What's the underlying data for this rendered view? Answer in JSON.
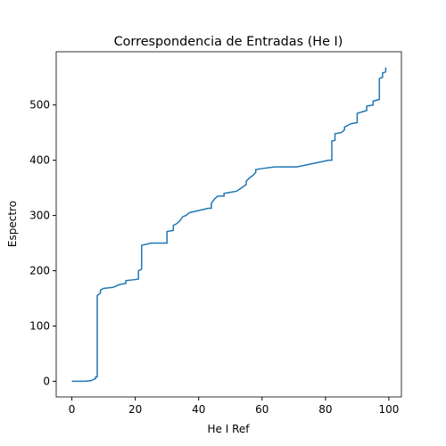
{
  "chart_data": {
    "type": "line",
    "title": "Correspondencia de Entradas (He I)",
    "xlabel": "He I Ref",
    "ylabel": "Espectro",
    "x": [
      0,
      4,
      6,
      7.5,
      7.5,
      8,
      8,
      9,
      9,
      10,
      13,
      15,
      17,
      17,
      20,
      21,
      21,
      22,
      22,
      25,
      29,
      30,
      30,
      32,
      32,
      33,
      34,
      35,
      36,
      37,
      43,
      44,
      44,
      45,
      46,
      48,
      48,
      52,
      53,
      54,
      55,
      55,
      56,
      57,
      58,
      58,
      60,
      64,
      71,
      81,
      82,
      82,
      83,
      83,
      85,
      86,
      86,
      87,
      88,
      90,
      90,
      93,
      93,
      95,
      95,
      97,
      97,
      98,
      98,
      99,
      99
    ],
    "series": [
      {
        "name": "Espectro",
        "color": "#1f77b4",
        "values": [
          0,
          0,
          1,
          5,
          8,
          8,
          155,
          160,
          165,
          168,
          170,
          175,
          177,
          182,
          184,
          185,
          200,
          203,
          246,
          250,
          250,
          250,
          271,
          273,
          282,
          285,
          290,
          298,
          300,
          305,
          313,
          313,
          322,
          330,
          335,
          335,
          340,
          344,
          348,
          352,
          356,
          362,
          368,
          372,
          378,
          383,
          385,
          388,
          388,
          400,
          400,
          435,
          436,
          448,
          450,
          455,
          460,
          463,
          466,
          468,
          485,
          490,
          498,
          500,
          507,
          510,
          548,
          550,
          558,
          560,
          568
        ]
      }
    ],
    "xlim": [
      -4.95,
      103.95
    ],
    "ylim": [
      -28.4,
      596.4
    ],
    "xticks": [
      0,
      20,
      40,
      60,
      80,
      100
    ],
    "yticks": [
      0,
      100,
      200,
      300,
      400,
      500
    ],
    "grid": false
  }
}
